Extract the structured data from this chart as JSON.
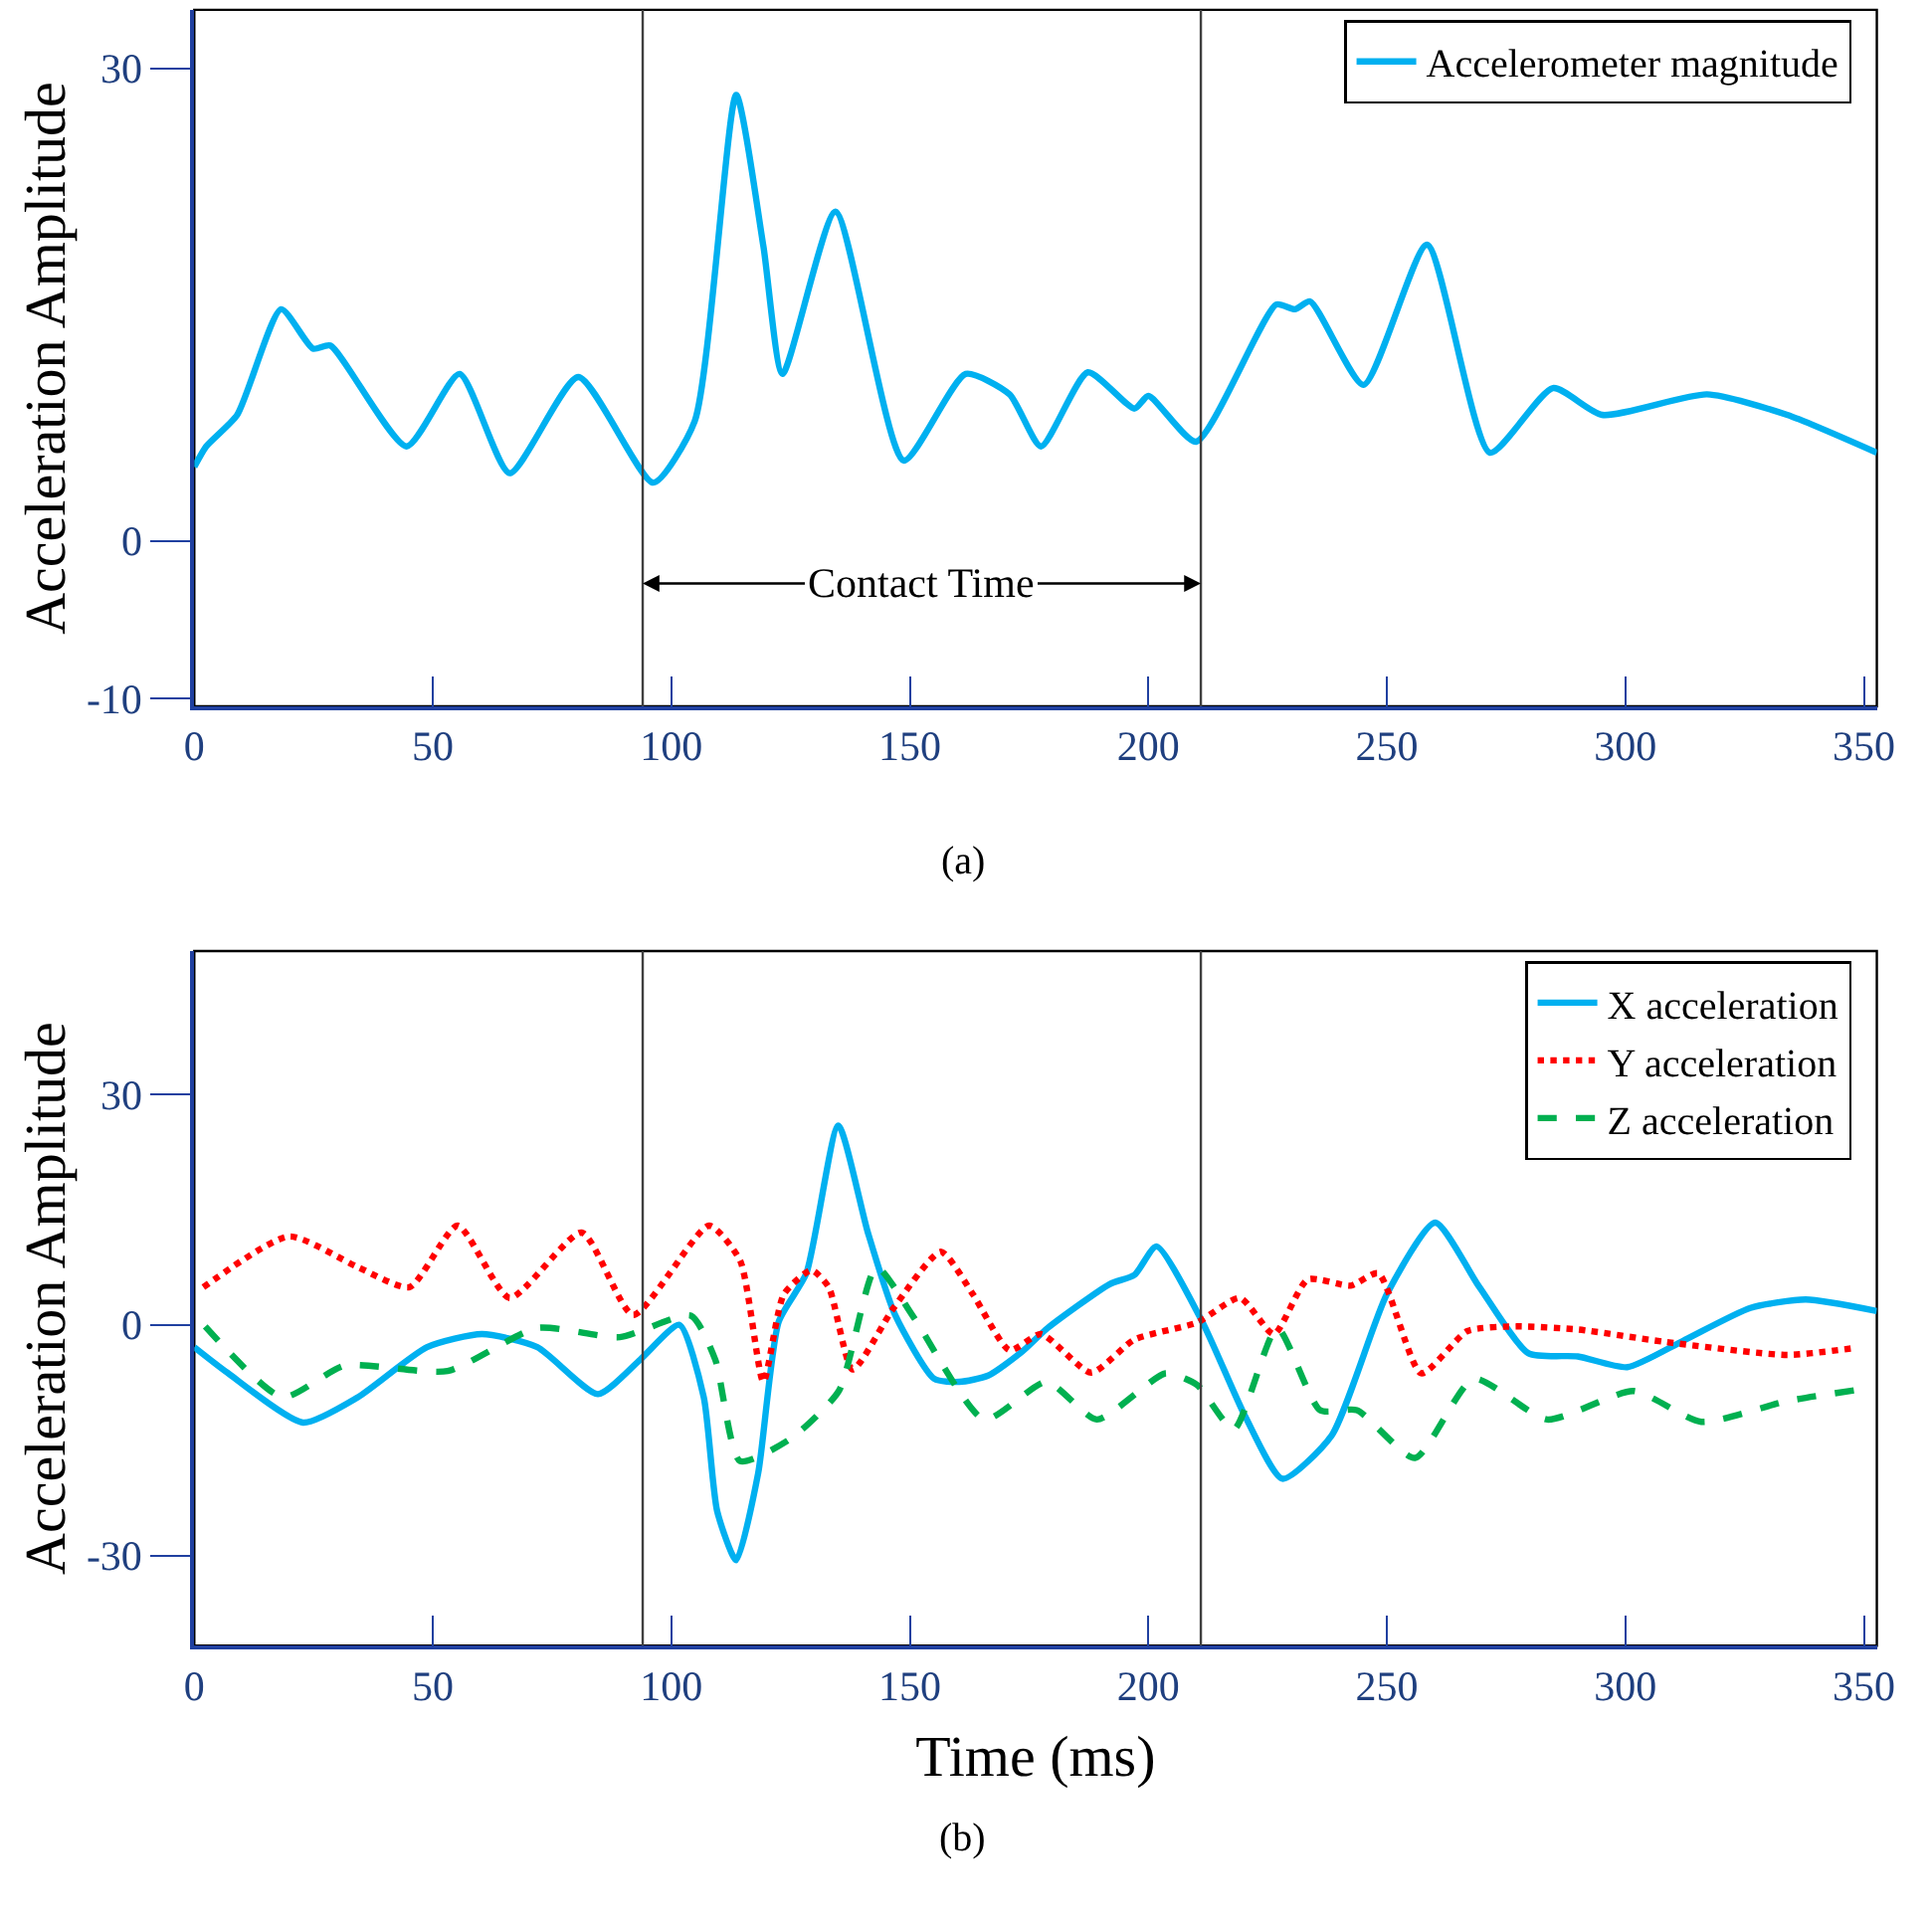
{
  "chart_data": [
    {
      "type": "line",
      "ylabel": "Acceleration Amplitude",
      "xlim": [
        0,
        352.7
      ],
      "xticks": [
        0,
        50,
        100,
        150,
        200,
        250,
        300,
        350
      ],
      "ylim": [
        -10.5,
        33.7
      ],
      "yticks": [
        30,
        0,
        -10
      ],
      "grid": false,
      "legend": "top right",
      "marker": "none",
      "series": [
        {
          "name": "Accelerometer magnitude",
          "color": "#00b0f0",
          "line_style": "solid",
          "x": [
            0,
            2.5,
            9,
            18.2,
            24.9,
            28.5,
            44.5,
            55.6,
            66.1,
            80.5,
            96.2,
            104.9,
            113.6,
            119.3,
            123.3,
            134.4,
            148.7,
            161.7,
            170.9,
            177.5,
            187.3,
            197.1,
            200,
            210,
            226.8,
            230.7,
            233.9,
            245.1,
            258.4,
            271.6,
            284.8,
            295.1,
            317.1,
            333.9,
            352.7
          ],
          "values": [
            4.7,
            6.0,
            8.0,
            14.7,
            12.2,
            12.4,
            6.0,
            10.6,
            4.3,
            10.4,
            3.7,
            7.6,
            28.3,
            18.7,
            10.6,
            20.9,
            5.1,
            10.6,
            9.3,
            6.0,
            10.7,
            8.4,
            9.2,
            6.3,
            15.0,
            14.7,
            15.2,
            9.9,
            18.8,
            5.6,
            9.7,
            8.0,
            9.3,
            8.0,
            5.6
          ]
        }
      ],
      "ref_lines": [
        {
          "axis": "x",
          "value": 94,
          "color": "#404040"
        },
        {
          "axis": "x",
          "value": 211,
          "color": "#404040"
        }
      ],
      "annotations": [
        {
          "text": "Contact Time",
          "x": 94,
          "y": -2.7
        },
        "(a)"
      ]
    },
    {
      "type": "line",
      "xlabel": "Time (ms)",
      "ylabel": "Acceleration Amplitude",
      "xlim": [
        0,
        352.7
      ],
      "xticks": [
        0,
        50,
        100,
        150,
        200,
        250,
        300,
        350
      ],
      "ylim": [
        -41.7,
        48.6
      ],
      "yticks": [
        30,
        0,
        -30
      ],
      "grid": false,
      "legend": "top right",
      "marker": "none",
      "series": [
        {
          "name": "X acceleration",
          "color": "#00b0f0",
          "line_style": "solid",
          "x": [
            0,
            6.9,
            22.8,
            34.3,
            48.8,
            60.3,
            71.9,
            84.6,
            93.5,
            101.7,
            106.8,
            109.6,
            113.6,
            118.2,
            122.5,
            128.3,
            135.0,
            141.2,
            146.9,
            155.1,
            160.4,
            166.4,
            173.5,
            178.9,
            191.9,
            197.1,
            201.7,
            211.3,
            220.3,
            228.1,
            238.4,
            250.0,
            260.1,
            269.4,
            279.7,
            290.0,
            300.4,
            312.0,
            326.2,
            337.8,
            352.7
          ],
          "values": [
            -2.9,
            -6.2,
            -12.7,
            -9.4,
            -2.9,
            -1.2,
            -2.9,
            -9.0,
            -4.5,
            0,
            -9.4,
            -24.2,
            -30.6,
            -19.3,
            0.4,
            6.7,
            25.9,
            12.0,
            1.3,
            -7.0,
            -7.4,
            -6.6,
            -3.5,
            -0.4,
            5.3,
            6.5,
            10.2,
            0.4,
            -11.9,
            -20.0,
            -14.4,
            4.0,
            13.3,
            4.9,
            -3.7,
            -4.1,
            -5.5,
            -2.1,
            2.2,
            3.3,
            1.8
          ]
        },
        {
          "name": "Y acceleration",
          "color": "#ff0000",
          "line_style": "dotted",
          "x": [
            1.9,
            19.9,
            34.3,
            45.1,
            55.2,
            66.1,
            81.2,
            92.0,
            107.9,
            114.4,
            119.3,
            123.6,
            129.4,
            133.0,
            138.0,
            146.6,
            156.5,
            163.2,
            170.9,
            177.5,
            188.0,
            197.1,
            210.2,
            219.2,
            226.3,
            233.4,
            242.4,
            248.2,
            257.2,
            266.9,
            277.2,
            290.0,
            308.1,
            333.9,
            348.1
          ],
          "values": [
            4.9,
            11.5,
            7.5,
            4.9,
            12.9,
            3.5,
            12.0,
            1.3,
            12.9,
            8.4,
            -7.4,
            4.0,
            7.1,
            4.9,
            -5.8,
            2.2,
            9.5,
            4.0,
            -3.3,
            -1.2,
            -6.2,
            -1.9,
            0.3,
            3.5,
            -1.2,
            5.9,
            5.1,
            6.7,
            -6.3,
            -0.8,
            -0.2,
            -0.6,
            -2.2,
            -3.9,
            -3.0
          ]
        },
        {
          "name": "Z acceleration",
          "color": "#00b050",
          "line_style": "dashed",
          "x": [
            2.3,
            18.5,
            31.5,
            53.1,
            71.9,
            89.2,
            104.1,
            109.2,
            114.4,
            125.0,
            135.1,
            143.0,
            150.9,
            165.6,
            178.7,
            189.2,
            203.6,
            210.2,
            217.9,
            227.0,
            236.0,
            243.7,
            255.9,
            268.2,
            283.6,
            301.7,
            315.9,
            333.9,
            348.1
          ],
          "values": [
            -0.2,
            -9.4,
            -5.3,
            -6.0,
            -0.4,
            -1.6,
            1.2,
            -4.5,
            -17.7,
            -14.8,
            -8.6,
            7.5,
            0.9,
            -12.3,
            -7.4,
            -12.3,
            -6.3,
            -7.8,
            -13.6,
            -0.4,
            -11.1,
            -11.1,
            -17.3,
            -7.0,
            -12.3,
            -8.6,
            -12.6,
            -9.9,
            -8.5
          ]
        }
      ],
      "ref_lines": [
        {
          "axis": "x",
          "value": 94,
          "color": "#404040"
        },
        {
          "axis": "x",
          "value": 211,
          "color": "#404040"
        }
      ],
      "annotations": [
        "(b)"
      ]
    }
  ]
}
